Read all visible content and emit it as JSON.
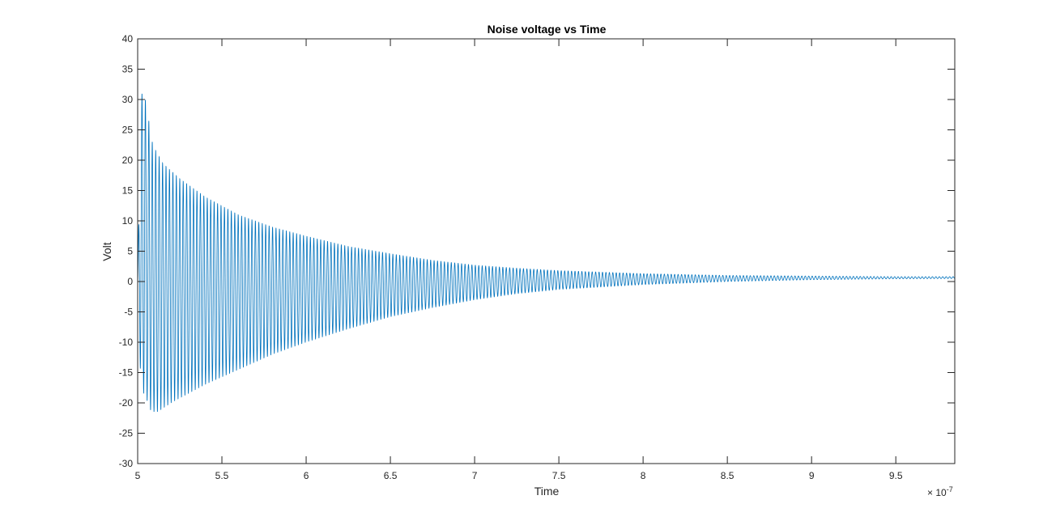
{
  "chart_data": {
    "type": "line",
    "title": "Noise voltage vs Time",
    "xlabel": "Time",
    "ylabel": "Volt",
    "x_exponent_label": {
      "base": "× 10",
      "exponent": "-7"
    },
    "xlim": [
      5.0,
      9.85
    ],
    "ylim": [
      -30,
      40
    ],
    "x_ticks": [
      5,
      5.5,
      6,
      6.5,
      7,
      7.5,
      8,
      8.5,
      9,
      9.5
    ],
    "x_tick_labels": [
      "5",
      "5.5",
      "6",
      "6.5",
      "7",
      "7.5",
      "8",
      "8.5",
      "9",
      "9.5"
    ],
    "y_ticks": [
      -30,
      -25,
      -20,
      -15,
      -10,
      -5,
      0,
      5,
      10,
      15,
      20,
      25,
      30,
      35,
      40
    ],
    "y_tick_labels": [
      "-30",
      "-25",
      "-20",
      "-15",
      "-10",
      "-5",
      "0",
      "5",
      "10",
      "15",
      "20",
      "25",
      "30",
      "35",
      "40"
    ],
    "grid": false,
    "color": "#0072BD",
    "series": [
      {
        "peaks": [
          {
            "x": 5.04,
            "y": 31.0
          },
          {
            "x": 5.09,
            "y": 22.5
          },
          {
            "x": 5.15,
            "y": 19.5
          },
          {
            "x": 5.25,
            "y": 17.0
          },
          {
            "x": 5.4,
            "y": 14.0
          },
          {
            "x": 5.6,
            "y": 11.0
          },
          {
            "x": 5.8,
            "y": 9.0
          },
          {
            "x": 6.0,
            "y": 7.5
          },
          {
            "x": 6.25,
            "y": 5.8
          },
          {
            "x": 6.5,
            "y": 4.6
          },
          {
            "x": 6.75,
            "y": 3.5
          },
          {
            "x": 7.0,
            "y": 2.7
          },
          {
            "x": 7.25,
            "y": 2.2
          },
          {
            "x": 7.5,
            "y": 1.8
          },
          {
            "x": 8.0,
            "y": 1.3
          },
          {
            "x": 8.5,
            "y": 1.0
          },
          {
            "x": 9.0,
            "y": 0.9
          },
          {
            "x": 9.5,
            "y": 0.8
          },
          {
            "x": 9.85,
            "y": 0.8
          }
        ],
        "troughs": [
          {
            "x": 5.04,
            "y": -18.5
          },
          {
            "x": 5.08,
            "y": -21.5
          },
          {
            "x": 5.12,
            "y": -21.5
          },
          {
            "x": 5.2,
            "y": -20.0
          },
          {
            "x": 5.4,
            "y": -17.0
          },
          {
            "x": 5.6,
            "y": -14.5
          },
          {
            "x": 5.8,
            "y": -12.0
          },
          {
            "x": 6.0,
            "y": -10.0
          },
          {
            "x": 6.25,
            "y": -7.8
          },
          {
            "x": 6.5,
            "y": -5.8
          },
          {
            "x": 6.75,
            "y": -4.3
          },
          {
            "x": 7.0,
            "y": -3.0
          },
          {
            "x": 7.25,
            "y": -2.0
          },
          {
            "x": 7.5,
            "y": -1.3
          },
          {
            "x": 8.0,
            "y": -0.5
          },
          {
            "x": 8.5,
            "y": 0.0
          },
          {
            "x": 9.0,
            "y": 0.3
          },
          {
            "x": 9.5,
            "y": 0.45
          },
          {
            "x": 9.85,
            "y": 0.5
          }
        ],
        "period": 0.0204
      }
    ]
  }
}
